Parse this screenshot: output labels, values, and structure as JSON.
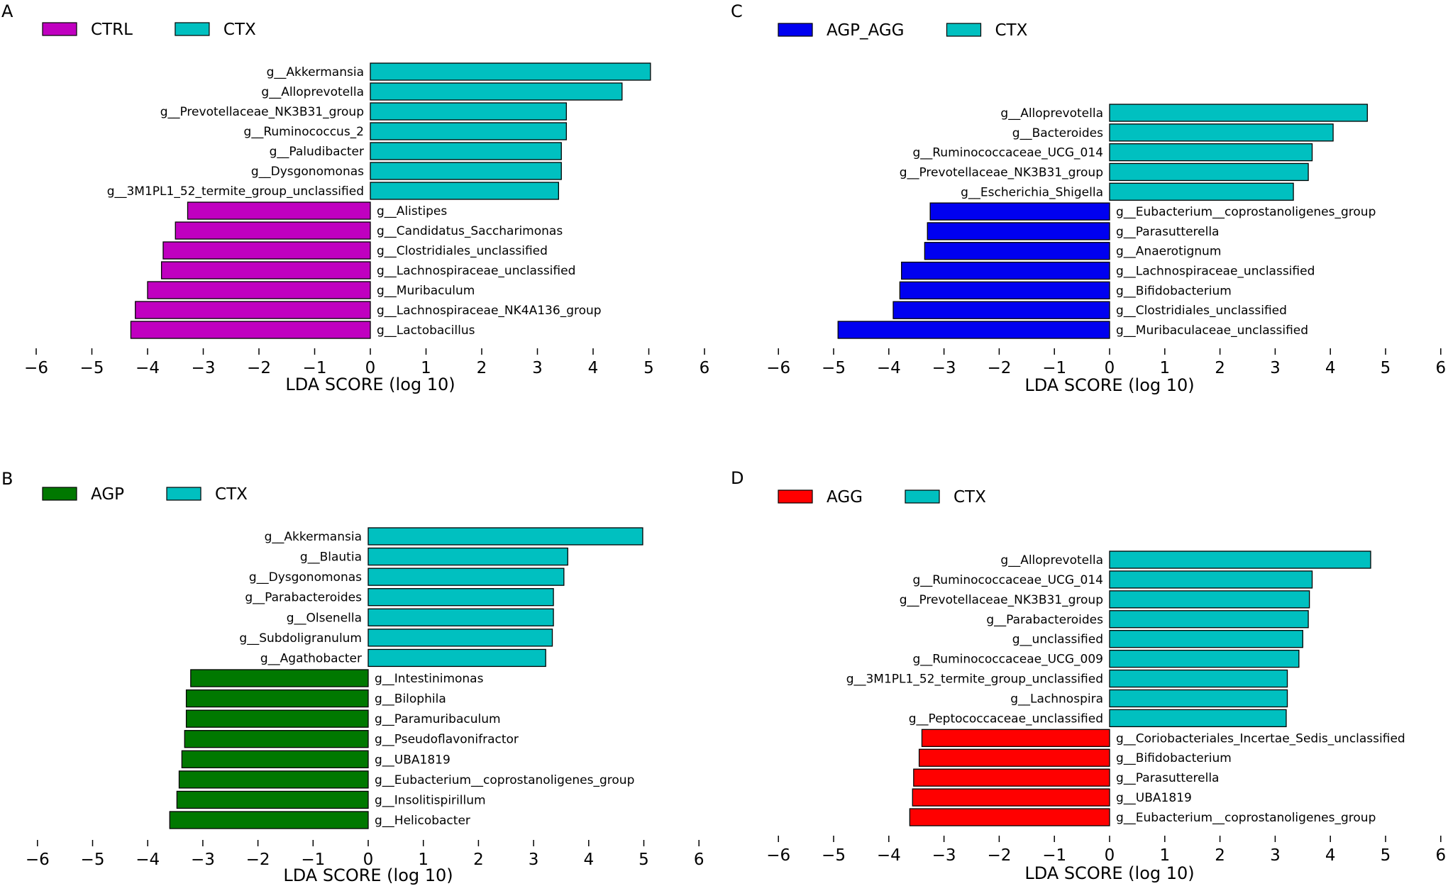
{
  "chart_data": [
    {
      "panel": "A",
      "type": "bar",
      "orientation": "horizontal",
      "xlabel": "LDA SCORE (log 10)",
      "xlim": [
        -6,
        6
      ],
      "xticks": [
        -6,
        -5,
        -4,
        -3,
        -2,
        -1,
        0,
        1,
        2,
        3,
        4,
        5,
        6
      ],
      "legend": [
        {
          "name": "CTRL",
          "color": "#c000c0"
        },
        {
          "name": "CTX",
          "color": "#00c0c0"
        }
      ],
      "bars": [
        {
          "label": "g__Akkermansia",
          "value": 5.03,
          "group": 1
        },
        {
          "label": "g__Alloprevotella",
          "value": 4.52,
          "group": 1
        },
        {
          "label": "g__Prevotellaceae_NK3B31_group",
          "value": 3.52,
          "group": 1
        },
        {
          "label": "g__Ruminococcus_2",
          "value": 3.52,
          "group": 1
        },
        {
          "label": "g__Paludibacter",
          "value": 3.43,
          "group": 1
        },
        {
          "label": "g__Dysgonomonas",
          "value": 3.43,
          "group": 1
        },
        {
          "label": "g__3M1PL1_52_termite_group_unclassified",
          "value": 3.38,
          "group": 1
        },
        {
          "label": "g__Alistipes",
          "value": -3.28,
          "group": 0
        },
        {
          "label": "g__Candidatus_Saccharimonas",
          "value": -3.5,
          "group": 0
        },
        {
          "label": "g__Clostridiales_unclassified",
          "value": -3.72,
          "group": 0
        },
        {
          "label": "g__Lachnospiraceae_unclassified",
          "value": -3.75,
          "group": 0
        },
        {
          "label": "g__Muribaculum",
          "value": -4.0,
          "group": 0
        },
        {
          "label": "g__Lachnospiraceae_NK4A136_group",
          "value": -4.22,
          "group": 0
        },
        {
          "label": "g__Lactobacillus",
          "value": -4.3,
          "group": 0
        }
      ]
    },
    {
      "panel": "B",
      "type": "bar",
      "orientation": "horizontal",
      "xlabel": "LDA SCORE (log 10)",
      "xlim": [
        -6,
        6
      ],
      "xticks": [
        -6,
        -5,
        -4,
        -3,
        -2,
        -1,
        0,
        1,
        2,
        3,
        4,
        5,
        6
      ],
      "legend": [
        {
          "name": "AGP",
          "color": "#007800"
        },
        {
          "name": "CTX",
          "color": "#00c0c0"
        }
      ],
      "bars": [
        {
          "label": "g__Akkermansia",
          "value": 4.98,
          "group": 1
        },
        {
          "label": "g__Blautia",
          "value": 3.62,
          "group": 1
        },
        {
          "label": "g__Dysgonomonas",
          "value": 3.55,
          "group": 1
        },
        {
          "label": "g__Parabacteroides",
          "value": 3.36,
          "group": 1
        },
        {
          "label": "g__Olsenella",
          "value": 3.36,
          "group": 1
        },
        {
          "label": "g__Subdoligranulum",
          "value": 3.34,
          "group": 1
        },
        {
          "label": "g__Agathobacter",
          "value": 3.22,
          "group": 1
        },
        {
          "label": "g__Intestinimonas",
          "value": -3.22,
          "group": 0
        },
        {
          "label": "g__Bilophila",
          "value": -3.3,
          "group": 0
        },
        {
          "label": "g__Paramuribaculum",
          "value": -3.3,
          "group": 0
        },
        {
          "label": "g__Pseudoflavonifractor",
          "value": -3.33,
          "group": 0
        },
        {
          "label": "g__UBA1819",
          "value": -3.38,
          "group": 0
        },
        {
          "label": "g__Eubacterium__coprostanoligenes_group",
          "value": -3.43,
          "group": 0
        },
        {
          "label": "g__Insolitispirillum",
          "value": -3.47,
          "group": 0
        },
        {
          "label": "g__Helicobacter",
          "value": -3.6,
          "group": 0
        }
      ]
    },
    {
      "panel": "C",
      "type": "bar",
      "orientation": "horizontal",
      "xlabel": "LDA SCORE (log 10)",
      "xlim": [
        -6,
        6
      ],
      "xticks": [
        -6,
        -5,
        -4,
        -3,
        -2,
        -1,
        0,
        1,
        2,
        3,
        4,
        5,
        6
      ],
      "legend": [
        {
          "name": "AGP_AGG",
          "color": "#0000f0"
        },
        {
          "name": "CTX",
          "color": "#00c0c0"
        }
      ],
      "bars": [
        {
          "label": "g__Alloprevotella",
          "value": 4.67,
          "group": 1
        },
        {
          "label": "g__Bacteroides",
          "value": 4.05,
          "group": 1
        },
        {
          "label": "g__Ruminococcaceae_UCG_014",
          "value": 3.67,
          "group": 1
        },
        {
          "label": "g__Prevotellaceae_NK3B31_group",
          "value": 3.6,
          "group": 1
        },
        {
          "label": "g__Escherichia_Shigella",
          "value": 3.33,
          "group": 1
        },
        {
          "label": "g__Eubacterium__coprostanoligenes_group",
          "value": -3.25,
          "group": 0
        },
        {
          "label": "g__Parasutterella",
          "value": -3.3,
          "group": 0
        },
        {
          "label": "g__Anaerotignum",
          "value": -3.35,
          "group": 0
        },
        {
          "label": "g__Lachnospiraceae_unclassified",
          "value": -3.77,
          "group": 0
        },
        {
          "label": "g__Bifidobacterium",
          "value": -3.8,
          "group": 0
        },
        {
          "label": "g__Clostridiales_unclassified",
          "value": -3.92,
          "group": 0
        },
        {
          "label": "g__Muribaculaceae_unclassified",
          "value": -4.92,
          "group": 0
        }
      ]
    },
    {
      "panel": "D",
      "type": "bar",
      "orientation": "horizontal",
      "xlabel": "LDA SCORE (log 10)",
      "xlim": [
        -6,
        6
      ],
      "xticks": [
        -6,
        -5,
        -4,
        -3,
        -2,
        -1,
        0,
        1,
        2,
        3,
        4,
        5,
        6
      ],
      "legend": [
        {
          "name": "AGG",
          "color": "#ff0000"
        },
        {
          "name": "CTX",
          "color": "#00c0c0"
        }
      ],
      "bars": [
        {
          "label": "g__Alloprevotella",
          "value": 4.73,
          "group": 1
        },
        {
          "label": "g__Ruminococcaceae_UCG_014",
          "value": 3.67,
          "group": 1
        },
        {
          "label": "g__Prevotellaceae_NK3B31_group",
          "value": 3.62,
          "group": 1
        },
        {
          "label": "g__Parabacteroides",
          "value": 3.6,
          "group": 1
        },
        {
          "label": "g__unclassified",
          "value": 3.5,
          "group": 1
        },
        {
          "label": "g__Ruminococcaceae_UCG_009",
          "value": 3.43,
          "group": 1
        },
        {
          "label": "g__3M1PL1_52_termite_group_unclassified",
          "value": 3.22,
          "group": 1
        },
        {
          "label": "g__Lachnospira",
          "value": 3.22,
          "group": 1
        },
        {
          "label": "g__Peptococcaceae_unclassified",
          "value": 3.2,
          "group": 1
        },
        {
          "label": "g__Coriobacteriales_Incertae_Sedis_unclassified",
          "value": -3.4,
          "group": 0
        },
        {
          "label": "g__Bifidobacterium",
          "value": -3.45,
          "group": 0
        },
        {
          "label": "g__Parasutterella",
          "value": -3.55,
          "group": 0
        },
        {
          "label": "g__UBA1819",
          "value": -3.57,
          "group": 0
        },
        {
          "label": "g__Eubacterium__coprostanoligenes_group",
          "value": -3.62,
          "group": 0
        }
      ]
    }
  ]
}
